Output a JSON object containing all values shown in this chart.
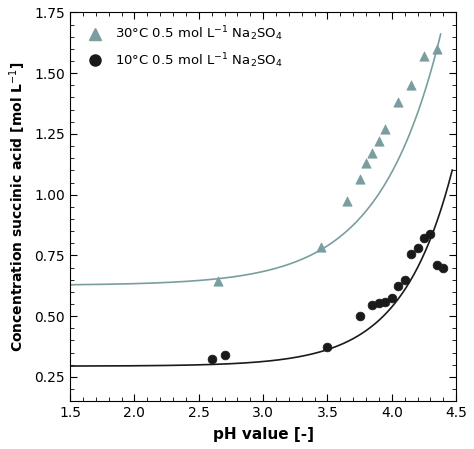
{
  "title": "",
  "xlabel": "pH value [-]",
  "xlim": [
    1.5,
    4.5
  ],
  "ylim": [
    0.15,
    1.75
  ],
  "xticks": [
    1.5,
    2.0,
    2.5,
    3.0,
    3.5,
    4.0,
    4.5
  ],
  "yticks": [
    0.25,
    0.5,
    0.75,
    1.0,
    1.25,
    1.5,
    1.75
  ],
  "series1_color": "#7a9e9f",
  "series1_marker": "^",
  "series1_x": [
    2.65,
    3.45,
    3.65,
    3.75,
    3.8,
    3.85,
    3.9,
    3.95,
    4.05,
    4.15,
    4.25,
    4.35
  ],
  "series1_y": [
    0.645,
    0.785,
    0.975,
    1.065,
    1.13,
    1.17,
    1.22,
    1.27,
    1.38,
    1.45,
    1.57,
    1.6
  ],
  "series2_color": "#1a1a1a",
  "series2_marker": "o",
  "series2_x": [
    2.6,
    2.7,
    3.5,
    3.75,
    3.85,
    3.9,
    3.95,
    4.0,
    4.05,
    4.1,
    4.15,
    4.2,
    4.25,
    4.3,
    4.35,
    4.4
  ],
  "series2_y": [
    0.325,
    0.34,
    0.375,
    0.5,
    0.545,
    0.555,
    0.56,
    0.575,
    0.625,
    0.65,
    0.755,
    0.78,
    0.82,
    0.84,
    0.71,
    0.7
  ],
  "background_color": "#ffffff",
  "line_color_1": "#7a9e9f",
  "line_color_2": "#1a1a1a",
  "fit1_a": 0.595,
  "fit1_b": 0.052,
  "fit1_k": 2.1,
  "fit1_x0": 3.0,
  "fit2_a": 0.285,
  "fit2_b": 0.028,
  "fit2_k": 2.55,
  "fit2_x0": 3.0
}
